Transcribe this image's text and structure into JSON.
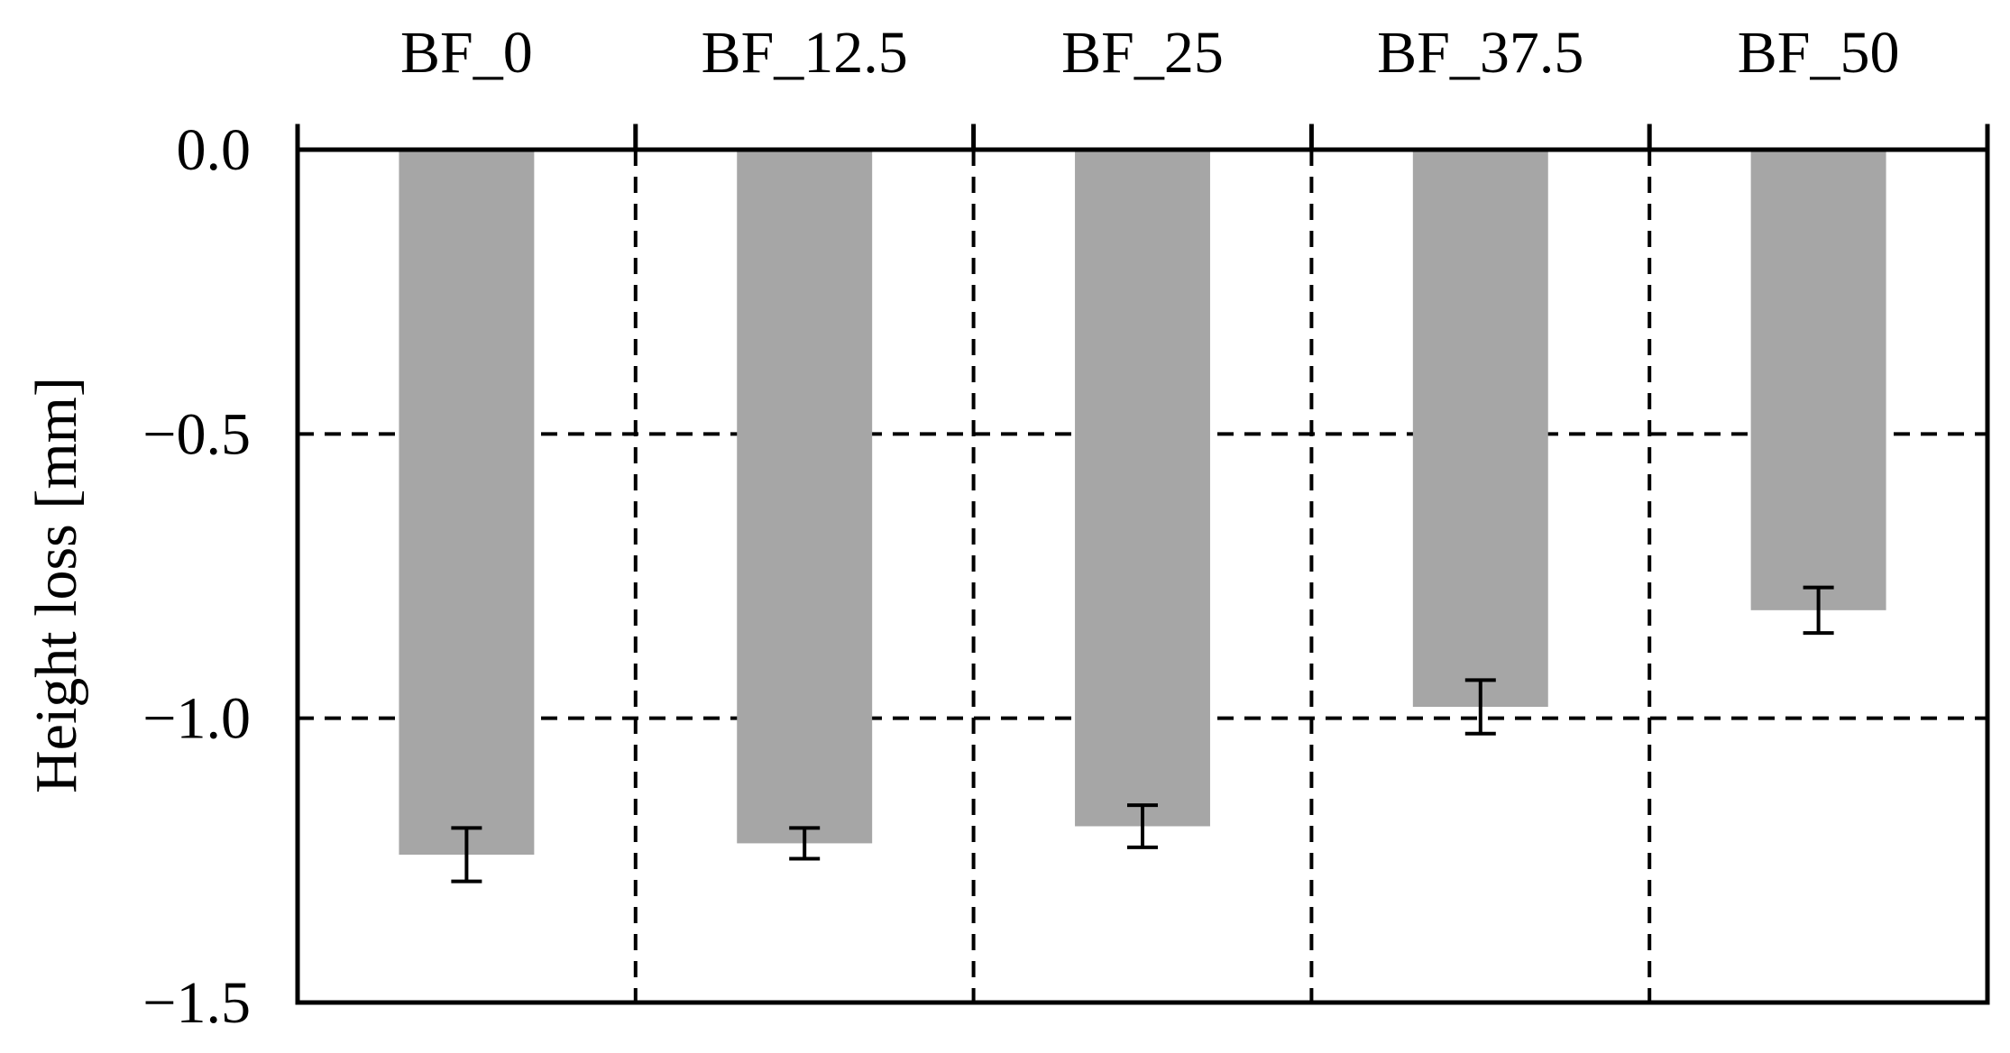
{
  "chart_data": {
    "type": "bar",
    "title": "",
    "xlabel": "",
    "ylabel": "Height loss [mm]",
    "categories": [
      "BF_0",
      "BF_12.5",
      "BF_25",
      "BF_37.5",
      "BF_50"
    ],
    "series": [
      {
        "values": [
          -1.24,
          -1.22,
          -1.19,
          -0.98,
          -0.81
        ],
        "error": [
          0.047,
          0.027,
          0.037,
          0.047,
          0.04
        ]
      }
    ],
    "ylim": [
      -1.5,
      0.0
    ],
    "yticks": [
      0.0,
      -0.5,
      -1.0,
      -1.5
    ],
    "ytick_labels": [
      "0.0",
      "−0.5",
      "−1.0",
      "−1.5"
    ],
    "x_axis_position": "top",
    "grid": true,
    "grid_style": "dashed",
    "bar_color": "#a6a6a6",
    "error_bar_color": "#000000"
  }
}
